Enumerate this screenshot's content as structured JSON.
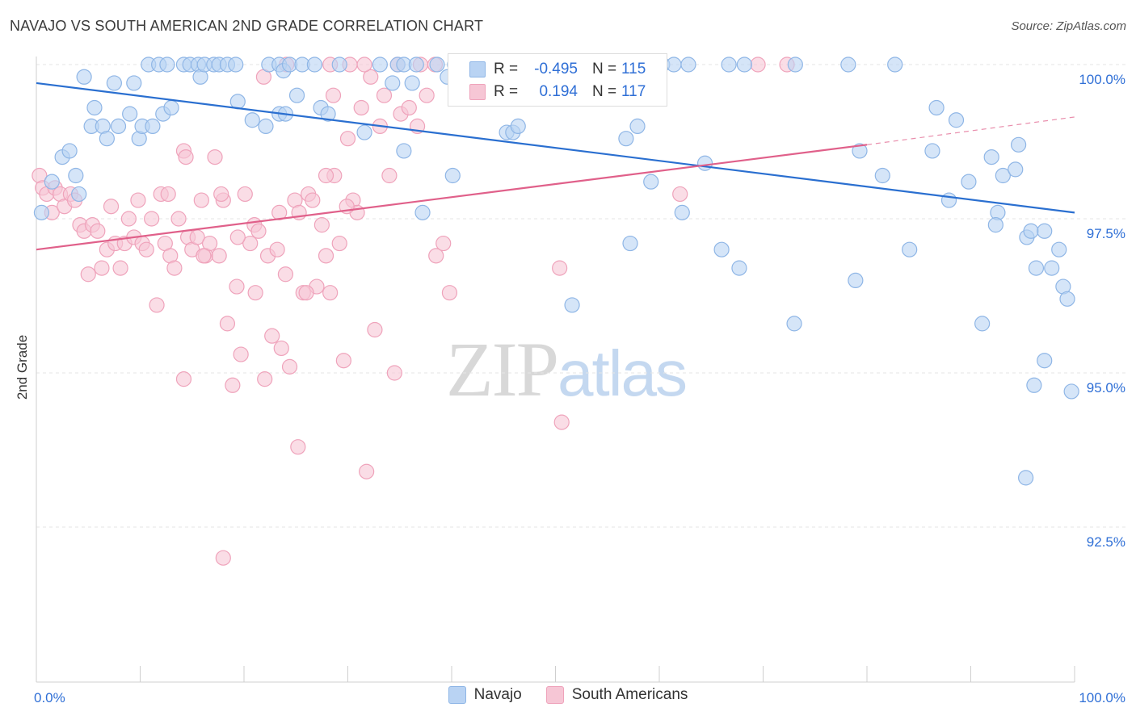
{
  "title": "NAVAJO VS SOUTH AMERICAN 2ND GRADE CORRELATION CHART",
  "source": "Source: ZipAtlas.com",
  "watermark": {
    "part1": "ZIP",
    "part2": "atlas"
  },
  "stats": {
    "r_label": "R =",
    "n_label": "N =",
    "navajo": {
      "r": "-0.495",
      "n": "115"
    },
    "south": {
      "r": "0.194",
      "n": "117"
    }
  },
  "legend": {
    "navajo": "Navajo",
    "south": "South Americans"
  },
  "colors": {
    "navajo_fill": "#b9d3f3",
    "navajo_stroke": "#8fb6e6",
    "navajo_line": "#2a6fd0",
    "south_fill": "#f6c6d5",
    "south_stroke": "#efa3bb",
    "south_line": "#e0608a",
    "tick_label": "#2f6fd6",
    "grid": "#e6e6e6"
  },
  "chart_data": {
    "type": "scatter",
    "title": "NAVAJO VS SOUTH AMERICAN 2ND GRADE CORRELATION CHART",
    "xlabel": "",
    "ylabel": "2nd Grade",
    "xlim": [
      0,
      100
    ],
    "ylim": [
      90.3,
      100.4
    ],
    "x_tick_labels": [
      "0.0%",
      "100.0%"
    ],
    "y_ticks": [
      100.0,
      97.5,
      95.0,
      92.5
    ],
    "y_tick_labels": [
      "100.0%",
      "97.5%",
      "95.0%",
      "92.5%"
    ],
    "legend_position": "bottom",
    "series": [
      {
        "name": "Navajo",
        "trend": {
          "x": [
            0,
            100
          ],
          "y": [
            99.7,
            97.6
          ],
          "style": "solid"
        },
        "points": [
          [
            0.5,
            97.6
          ],
          [
            1.5,
            98.1
          ],
          [
            2.5,
            98.5
          ],
          [
            3.2,
            98.6
          ],
          [
            3.8,
            98.2
          ],
          [
            4.1,
            97.9
          ],
          [
            4.6,
            99.8
          ],
          [
            5.6,
            99.3
          ],
          [
            5.3,
            99.0
          ],
          [
            6.4,
            99.0
          ],
          [
            6.8,
            98.8
          ],
          [
            7.5,
            99.7
          ],
          [
            7.9,
            99.0
          ],
          [
            9.0,
            99.2
          ],
          [
            9.4,
            99.7
          ],
          [
            9.9,
            98.8
          ],
          [
            10.2,
            99.0
          ],
          [
            11.2,
            99.0
          ],
          [
            12.2,
            99.2
          ],
          [
            13.0,
            99.3
          ],
          [
            10.8,
            100.0
          ],
          [
            11.8,
            100.0
          ],
          [
            12.6,
            100.0
          ],
          [
            14.2,
            100.0
          ],
          [
            14.8,
            100.0
          ],
          [
            15.6,
            100.0
          ],
          [
            15.8,
            99.8
          ],
          [
            16.2,
            100.0
          ],
          [
            17.1,
            100.0
          ],
          [
            17.6,
            100.0
          ],
          [
            18.4,
            100.0
          ],
          [
            19.2,
            100.0
          ],
          [
            22.4,
            100.0
          ],
          [
            23.4,
            100.0
          ],
          [
            23.8,
            99.9
          ],
          [
            24.4,
            100.0
          ],
          [
            19.4,
            99.4
          ],
          [
            20.8,
            99.1
          ],
          [
            22.1,
            99.0
          ],
          [
            23.4,
            99.2
          ],
          [
            24.0,
            99.2
          ],
          [
            25.1,
            99.5
          ],
          [
            25.6,
            100.0
          ],
          [
            26.8,
            100.0
          ],
          [
            27.4,
            99.3
          ],
          [
            28.1,
            99.2
          ],
          [
            29.2,
            100.0
          ],
          [
            31.6,
            98.9
          ],
          [
            33.1,
            100.0
          ],
          [
            34.3,
            99.7
          ],
          [
            34.8,
            100.0
          ],
          [
            35.4,
            100.0
          ],
          [
            36.2,
            99.7
          ],
          [
            36.6,
            100.0
          ],
          [
            35.4,
            98.6
          ],
          [
            37.2,
            97.6
          ],
          [
            38.6,
            100.0
          ],
          [
            39.6,
            99.8
          ],
          [
            40.3,
            100.0
          ],
          [
            40.6,
            100.0
          ],
          [
            40.8,
            100.0
          ],
          [
            41.2,
            100.0
          ],
          [
            40.1,
            98.2
          ],
          [
            45.3,
            98.9
          ],
          [
            45.9,
            98.9
          ],
          [
            46.4,
            99.0
          ],
          [
            53.2,
            100.0
          ],
          [
            53.6,
            100.0
          ],
          [
            57.5,
            100.0
          ],
          [
            59.7,
            100.0
          ],
          [
            60.3,
            100.0
          ],
          [
            61.4,
            100.0
          ],
          [
            62.8,
            100.0
          ],
          [
            66.7,
            100.0
          ],
          [
            68.2,
            100.0
          ],
          [
            73.1,
            100.0
          ],
          [
            78.2,
            100.0
          ],
          [
            82.7,
            100.0
          ],
          [
            86.7,
            99.3
          ],
          [
            86.3,
            98.6
          ],
          [
            88.6,
            99.1
          ],
          [
            89.8,
            98.1
          ],
          [
            92.0,
            98.5
          ],
          [
            93.1,
            98.2
          ],
          [
            92.6,
            97.6
          ],
          [
            94.3,
            98.3
          ],
          [
            94.6,
            98.7
          ],
          [
            95.4,
            97.2
          ],
          [
            95.8,
            97.3
          ],
          [
            96.3,
            96.7
          ],
          [
            97.1,
            97.3
          ],
          [
            97.8,
            96.7
          ],
          [
            98.5,
            97.0
          ],
          [
            98.9,
            96.4
          ],
          [
            99.3,
            96.2
          ],
          [
            99.7,
            94.7
          ],
          [
            97.1,
            95.2
          ],
          [
            96.1,
            94.8
          ],
          [
            95.3,
            93.3
          ],
          [
            92.4,
            97.4
          ],
          [
            91.1,
            95.8
          ],
          [
            84.1,
            97.0
          ],
          [
            78.9,
            96.5
          ],
          [
            73.0,
            95.8
          ],
          [
            62.2,
            97.6
          ],
          [
            57.9,
            99.0
          ],
          [
            59.2,
            98.1
          ],
          [
            64.4,
            98.4
          ],
          [
            56.8,
            98.8
          ],
          [
            66.0,
            97.0
          ],
          [
            57.2,
            97.1
          ],
          [
            51.6,
            96.1
          ],
          [
            67.7,
            96.7
          ],
          [
            79.3,
            98.6
          ],
          [
            81.5,
            98.2
          ],
          [
            87.9,
            97.8
          ]
        ]
      },
      {
        "name": "South Americans",
        "trend": {
          "x": [
            0,
            80
          ],
          "y": [
            97.0,
            98.7
          ],
          "style": "solid",
          "dashed_extension": {
            "x": [
              80,
              100
            ],
            "y": [
              98.7,
              99.15
            ]
          }
        },
        "points": [
          [
            0.3,
            98.2
          ],
          [
            0.6,
            98.0
          ],
          [
            1.0,
            97.9
          ],
          [
            1.5,
            97.6
          ],
          [
            1.8,
            98.0
          ],
          [
            2.3,
            97.9
          ],
          [
            2.7,
            97.7
          ],
          [
            3.3,
            97.9
          ],
          [
            3.7,
            97.8
          ],
          [
            4.2,
            97.4
          ],
          [
            4.6,
            97.3
          ],
          [
            5.0,
            96.6
          ],
          [
            5.4,
            97.4
          ],
          [
            5.9,
            97.3
          ],
          [
            6.3,
            96.7
          ],
          [
            6.8,
            97.0
          ],
          [
            7.2,
            97.7
          ],
          [
            7.6,
            97.1
          ],
          [
            8.1,
            96.7
          ],
          [
            8.5,
            97.1
          ],
          [
            8.9,
            97.5
          ],
          [
            9.4,
            97.2
          ],
          [
            9.8,
            97.8
          ],
          [
            10.2,
            97.1
          ],
          [
            10.6,
            97.0
          ],
          [
            11.1,
            97.5
          ],
          [
            11.6,
            96.1
          ],
          [
            12.0,
            97.9
          ],
          [
            12.4,
            97.1
          ],
          [
            12.9,
            96.9
          ],
          [
            13.3,
            96.7
          ],
          [
            13.7,
            97.5
          ],
          [
            14.2,
            98.6
          ],
          [
            14.6,
            97.2
          ],
          [
            15.0,
            97.0
          ],
          [
            15.5,
            97.2
          ],
          [
            15.9,
            97.8
          ],
          [
            16.3,
            96.9
          ],
          [
            16.7,
            97.1
          ],
          [
            17.2,
            98.5
          ],
          [
            17.6,
            96.9
          ],
          [
            18.0,
            97.8
          ],
          [
            18.4,
            95.8
          ],
          [
            18.9,
            94.8
          ],
          [
            19.3,
            96.4
          ],
          [
            19.7,
            95.3
          ],
          [
            20.1,
            97.9
          ],
          [
            20.6,
            97.1
          ],
          [
            21.0,
            97.4
          ],
          [
            21.4,
            97.3
          ],
          [
            21.9,
            99.8
          ],
          [
            22.3,
            96.9
          ],
          [
            22.7,
            95.6
          ],
          [
            23.2,
            97.0
          ],
          [
            23.6,
            95.4
          ],
          [
            24.0,
            96.6
          ],
          [
            24.4,
            95.1
          ],
          [
            24.9,
            97.8
          ],
          [
            25.3,
            97.6
          ],
          [
            25.7,
            96.3
          ],
          [
            26.2,
            97.9
          ],
          [
            26.6,
            97.8
          ],
          [
            27.0,
            96.4
          ],
          [
            27.5,
            97.4
          ],
          [
            27.9,
            96.9
          ],
          [
            28.3,
            96.3
          ],
          [
            28.7,
            98.2
          ],
          [
            29.2,
            97.1
          ],
          [
            29.6,
            95.2
          ],
          [
            30.0,
            98.8
          ],
          [
            30.5,
            97.8
          ],
          [
            30.9,
            97.6
          ],
          [
            31.3,
            99.3
          ],
          [
            31.8,
            93.4
          ],
          [
            32.2,
            99.8
          ],
          [
            32.6,
            95.7
          ],
          [
            33.1,
            99.0
          ],
          [
            33.5,
            99.5
          ],
          [
            34.0,
            98.2
          ],
          [
            34.5,
            95.0
          ],
          [
            35.1,
            99.2
          ],
          [
            35.9,
            99.3
          ],
          [
            36.7,
            99.0
          ],
          [
            37.6,
            99.5
          ],
          [
            38.5,
            96.9
          ],
          [
            39.2,
            97.1
          ],
          [
            39.8,
            96.3
          ],
          [
            40.6,
            99.6
          ],
          [
            41.4,
            99.7
          ],
          [
            22.0,
            94.9
          ],
          [
            18.0,
            92.0
          ],
          [
            25.2,
            93.8
          ],
          [
            14.2,
            94.9
          ],
          [
            50.4,
            96.7
          ],
          [
            50.6,
            94.2
          ],
          [
            62.0,
            97.9
          ],
          [
            69.5,
            100.0
          ],
          [
            72.3,
            100.0
          ],
          [
            31.6,
            100.0
          ],
          [
            34.8,
            100.0
          ],
          [
            37.0,
            100.0
          ],
          [
            38.4,
            100.0
          ],
          [
            41.9,
            100.0
          ],
          [
            24.1,
            100.0
          ],
          [
            28.3,
            100.0
          ],
          [
            30.2,
            100.0
          ],
          [
            12.7,
            97.9
          ],
          [
            14.4,
            98.5
          ],
          [
            16.1,
            96.9
          ],
          [
            17.8,
            97.9
          ],
          [
            19.4,
            97.2
          ],
          [
            21.1,
            96.3
          ],
          [
            23.4,
            97.6
          ],
          [
            26.0,
            96.3
          ],
          [
            27.9,
            98.2
          ],
          [
            28.6,
            99.5
          ],
          [
            29.9,
            97.7
          ]
        ]
      }
    ]
  }
}
